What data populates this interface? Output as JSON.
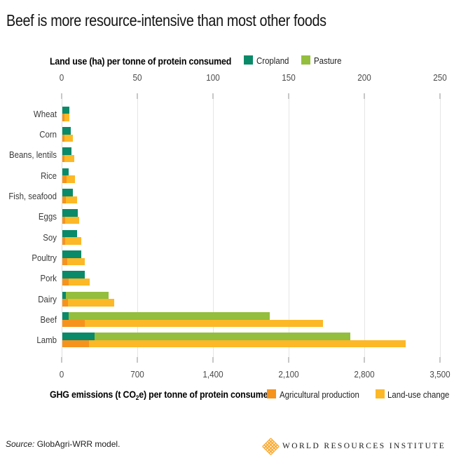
{
  "title": "Beef is more resource-intensive than most other foods",
  "chart_data": {
    "type": "bar",
    "orientation": "horizontal",
    "categories": [
      "Wheat",
      "Corn",
      "Beans, lentils",
      "Rice",
      "Fish, seafood",
      "Eggs",
      "Soy",
      "Poultry",
      "Pork",
      "Dairy",
      "Beef",
      "Lamb"
    ],
    "land_use": {
      "label": "Land use (ha) per tonne of protein consumed",
      "ticks": [
        "0",
        "50",
        "100",
        "150",
        "200",
        "250"
      ],
      "tick_interval": 50,
      "axis_max": 250,
      "legend_position": "top",
      "grid": true,
      "series": [
        {
          "name": "Cropland",
          "color": "#0A8A68",
          "values": [
            4.6,
            5.6,
            6,
            4.2,
            6.8,
            10.2,
            9.9,
            12.5,
            15,
            2.3,
            4.2,
            21.3
          ]
        },
        {
          "name": "Pasture",
          "color": "#94BE3D",
          "values": [
            0,
            0,
            0,
            0,
            0,
            0,
            0,
            0,
            0,
            28.2,
            133,
            169
          ]
        }
      ]
    },
    "ghg": {
      "label_parts": [
        "GHG emissions (t CO",
        "2",
        "e) per tonne of protein consumed"
      ],
      "ticks": [
        "0",
        "700",
        "1,400",
        "2,100",
        "2,800",
        "3,500"
      ],
      "tick_interval": 700,
      "axis_max": 3500,
      "legend_position": "bottom",
      "grid": true,
      "series": [
        {
          "name": "Agricultural production",
          "color": "#F6931D",
          "values": [
            19,
            19,
            19,
            39,
            32,
            25,
            28,
            45,
            58,
            50,
            207,
            246
          ]
        },
        {
          "name": "Land-use change",
          "color": "#FCB826",
          "values": [
            46,
            78,
            89,
            78,
            106,
            131,
            147,
            165,
            197,
            430,
            2204,
            2929
          ]
        }
      ]
    }
  },
  "source": {
    "prefix": "Source:",
    "text": "GlobAgri-WRR model."
  },
  "logo": {
    "text": "WORLD RESOURCES INSTITUTE",
    "mark_color": "#F9AE3B"
  }
}
